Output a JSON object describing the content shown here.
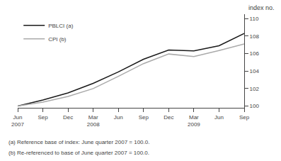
{
  "chart_data": {
    "type": "line",
    "categories": [
      "Jun\n2007",
      "Sep",
      "Dec",
      "Mar\n2008",
      "Jun",
      "Sep",
      "Dec",
      "Mar\n2009",
      "Jun",
      "Sep"
    ],
    "series": [
      {
        "name": "PBLCI (a)",
        "color": "#1a1a1a",
        "values": [
          100.0,
          100.7,
          101.5,
          102.6,
          103.9,
          105.35,
          106.4,
          106.3,
          106.9,
          108.3
        ]
      },
      {
        "name": "CPI (b)",
        "color": "#aaaaaa",
        "values": [
          100.0,
          100.45,
          101.1,
          102.0,
          103.4,
          104.85,
          105.95,
          105.65,
          106.35,
          107.1
        ]
      }
    ],
    "ylabel": "index no.",
    "ylim": [
      99.8,
      110.5
    ],
    "yticks": [
      100,
      102,
      104,
      106,
      108,
      110
    ],
    "annotations": [
      "(a) Reference base of index: June quarter 2007 = 100.0.",
      "(b) Re-referenced to base of June quarter 2007 = 100.0."
    ],
    "legend": "upper left",
    "grid": false
  }
}
